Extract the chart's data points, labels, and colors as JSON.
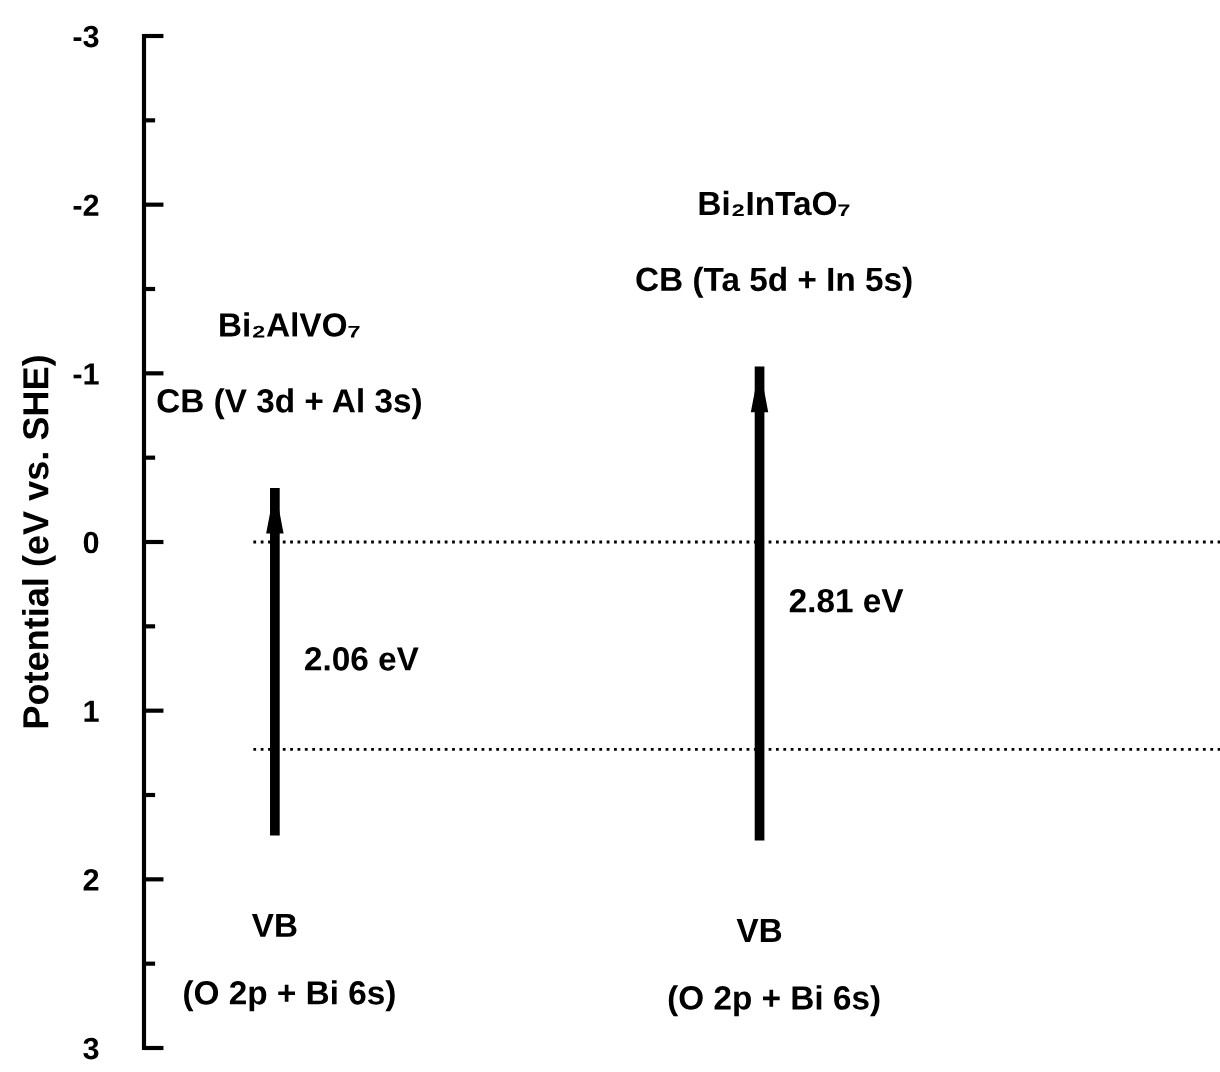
{
  "chart_data": {
    "type": "bar",
    "ylabel": "Potential (eV vs. SHE)",
    "categories": [
      null,
      null
    ],
    "base": [
      1.74,
      1.77
    ],
    "values": [
      -2.06,
      -2.81
    ],
    "color": "#000000",
    "ylim": [
      3,
      -3
    ],
    "yticks": [
      -3,
      -2,
      -1,
      0,
      1,
      2,
      3
    ],
    "ref_lines": [
      {
        "axis": "y",
        "value": 0,
        "line_style": "dotted",
        "color": "#000000"
      },
      {
        "axis": "y",
        "value": 1.23,
        "line_style": "dotted",
        "color": "#000000"
      }
    ],
    "annotations": [
      "Bi₂AlVO₇",
      "CB (V 3d + Al 3s)",
      "VB",
      "(O 2p + Bi 6s)",
      "Bi₂InTaO₇",
      "CB (Ta 5d + In 5s)",
      "VB",
      "(O 2p + Bi 6s)",
      "2.06 eV",
      "2.81 eV"
    ],
    "grid": false,
    "legend": false
  }
}
